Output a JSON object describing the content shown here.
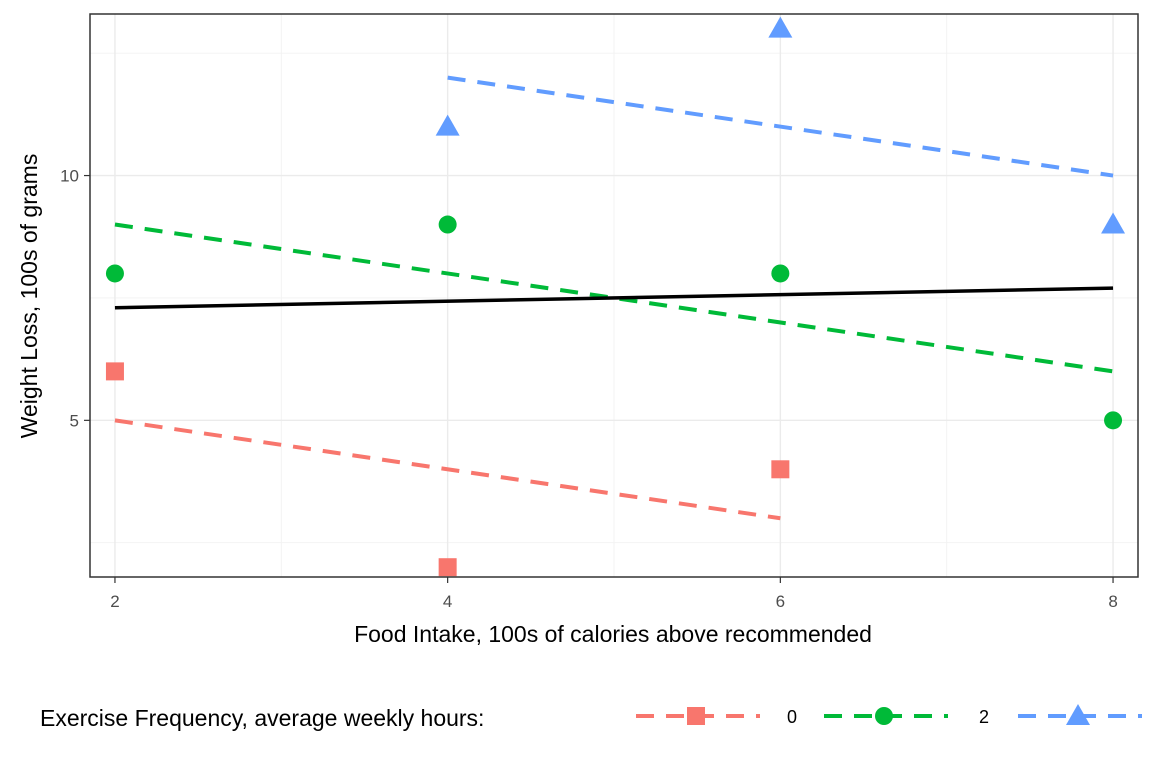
{
  "chart_data": {
    "type": "scatter",
    "xlabel": "Food Intake, 100s of calories above recommended",
    "ylabel": "Weight Loss, 100s of grams",
    "xlim": [
      1.85,
      8.15
    ],
    "ylim": [
      1.8,
      13.3
    ],
    "x_ticks": [
      2,
      4,
      6,
      8
    ],
    "y_ticks": [
      5,
      10
    ],
    "grid": true,
    "legend_position": "bottom",
    "legend_title": "Exercise Frequency, average weekly hours:",
    "series": [
      {
        "name": "0",
        "color": "#F8766D",
        "shape": "square",
        "points": [
          [
            2,
            6
          ],
          [
            4,
            2
          ],
          [
            6,
            4
          ]
        ],
        "fit_line": {
          "x": [
            2,
            6
          ],
          "y": [
            5,
            3
          ]
        }
      },
      {
        "name": "2",
        "color": "#00BA38",
        "shape": "circle",
        "points": [
          [
            2,
            8
          ],
          [
            4,
            9
          ],
          [
            6,
            8
          ],
          [
            8,
            5
          ]
        ],
        "fit_line": {
          "x": [
            2,
            8
          ],
          "y": [
            9,
            6
          ]
        }
      },
      {
        "name": "",
        "color": "#619CFF",
        "shape": "triangle",
        "points": [
          [
            4,
            11
          ],
          [
            6,
            13
          ],
          [
            8,
            9
          ]
        ],
        "fit_line": {
          "x": [
            4,
            8
          ],
          "y": [
            12,
            10
          ]
        }
      }
    ],
    "overall_fit": {
      "color": "#000000",
      "x": [
        2,
        8
      ],
      "y": [
        7.3,
        7.7
      ]
    }
  }
}
